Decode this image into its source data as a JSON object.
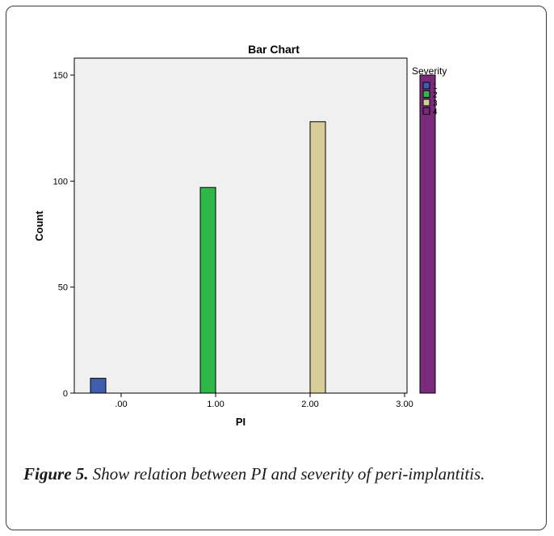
{
  "chart_data": {
    "type": "bar",
    "title": "Bar Chart",
    "xlabel": "PI",
    "ylabel": "Count",
    "categories": [
      ".00",
      "1.00",
      "2.00",
      "3.00"
    ],
    "ylim": [
      0,
      158
    ],
    "yticks": [
      0,
      50,
      100,
      150
    ],
    "grid": false,
    "legend": {
      "title": "Severity",
      "placement": "right"
    },
    "series": [
      {
        "name": "1",
        "color": "#3f5fae",
        "values": [
          7,
          0,
          0,
          0
        ]
      },
      {
        "name": "2",
        "color": "#2db848",
        "values": [
          0,
          97,
          0,
          0
        ]
      },
      {
        "name": "3",
        "color": "#d6cd98",
        "values": [
          0,
          0,
          128,
          0
        ]
      },
      {
        "name": "4",
        "color": "#7a2a7a",
        "values": [
          0,
          0,
          0,
          150
        ]
      }
    ]
  },
  "caption": {
    "figure_label": "Figure 5.",
    "text": " Show relation between PI and severity of peri-implantitis."
  }
}
